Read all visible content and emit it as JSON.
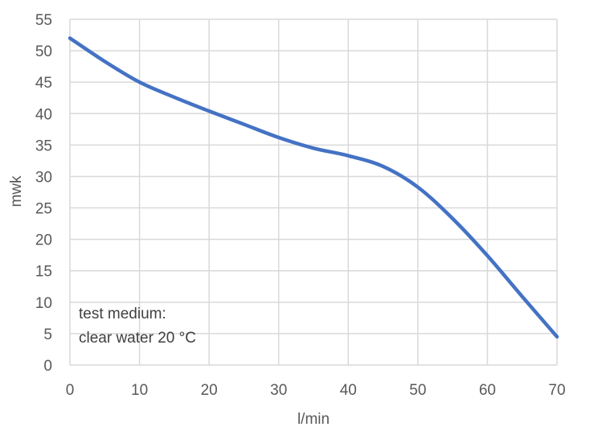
{
  "chart_data": {
    "type": "line",
    "title": "",
    "xlabel": "l/min",
    "ylabel": "mwk",
    "xlim": [
      0,
      70
    ],
    "ylim": [
      0,
      55
    ],
    "xticks": [
      0,
      10,
      20,
      30,
      40,
      50,
      60,
      70
    ],
    "yticks": [
      0,
      5,
      10,
      15,
      20,
      25,
      30,
      35,
      40,
      45,
      50,
      55
    ],
    "grid": true,
    "legend": "none",
    "annotation": [
      "test medium:",
      "clear water 20 °C"
    ],
    "series": [
      {
        "color": "#4472c4",
        "x": [
          0,
          5,
          10,
          15,
          20,
          25,
          30,
          35,
          40,
          45,
          50,
          55,
          60,
          65,
          70
        ],
        "y": [
          52,
          48.3,
          45,
          42.6,
          40.4,
          38.3,
          36.2,
          34.5,
          33.3,
          31.6,
          28.3,
          23.3,
          17.4,
          10.9,
          4.5
        ]
      }
    ]
  }
}
